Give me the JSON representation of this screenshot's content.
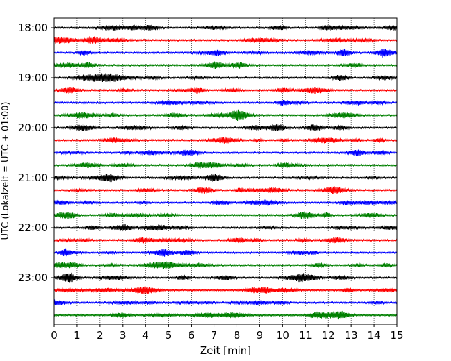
{
  "chart_data": {
    "type": "line",
    "title": "",
    "xlabel": "Zeit  [min]",
    "ylabel": "UTC (Lokalzeit = UTC + 01:00)",
    "xlim": [
      0,
      15
    ],
    "x_ticks": [
      "0",
      "1",
      "2",
      "3",
      "4",
      "5",
      "6",
      "7",
      "8",
      "9",
      "10",
      "11",
      "12",
      "13",
      "14",
      "15"
    ],
    "y_tick_labels": [
      "18:00",
      "19:00",
      "20:00",
      "21:00",
      "22:00",
      "23:00"
    ],
    "grid": "vertical-dotted",
    "row_start": "18:00",
    "row_interval_minutes": 15,
    "trace_count": 24,
    "trace_colors": [
      "#000000",
      "#ff0000",
      "#0000ff",
      "#008000"
    ]
  }
}
